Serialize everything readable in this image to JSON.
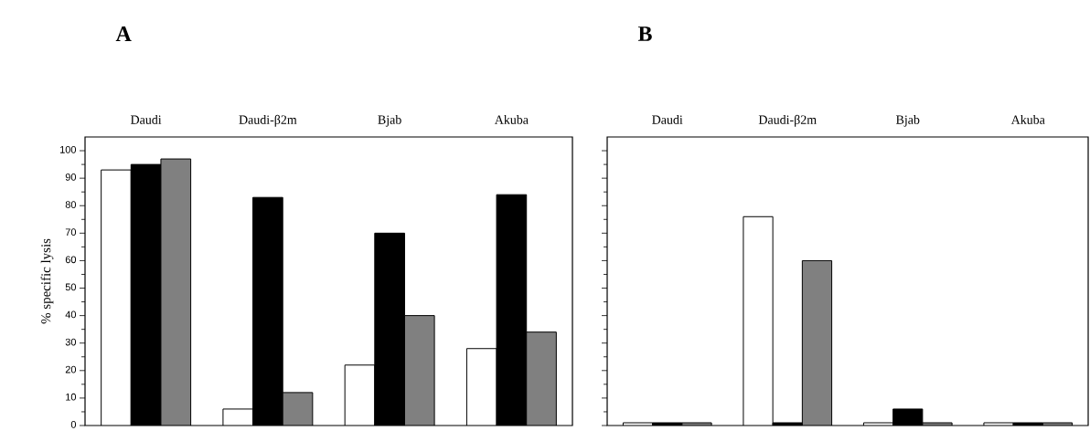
{
  "chart_data": [
    {
      "type": "bar",
      "title": "A",
      "ylabel": "% specific lysis",
      "categories": [
        "Daudi",
        "Daudi-β2m",
        "Bjab",
        "Akuba"
      ],
      "series": [
        {
          "color": "#ffffff",
          "values": [
            93,
            6,
            22,
            28
          ]
        },
        {
          "color": "#000000",
          "values": [
            95,
            83,
            70,
            84
          ]
        },
        {
          "color": "#808080",
          "values": [
            97,
            12,
            40,
            34
          ]
        }
      ],
      "ylim": [
        0,
        105
      ],
      "yticks": [
        0,
        10,
        20,
        30,
        40,
        50,
        60,
        70,
        80,
        90,
        100
      ]
    },
    {
      "type": "bar",
      "title": "B",
      "categories": [
        "Daudi",
        "Daudi-β2m",
        "Bjab",
        "Akuba"
      ],
      "series": [
        {
          "color": "#ffffff",
          "values": [
            1,
            76,
            1,
            1
          ]
        },
        {
          "color": "#000000",
          "values": [
            1,
            1,
            6,
            1
          ]
        },
        {
          "color": "#808080",
          "values": [
            1,
            60,
            1,
            1
          ]
        }
      ],
      "ylim": [
        0,
        105
      ],
      "yticks": [
        0,
        10,
        20,
        30,
        40,
        50,
        60,
        70,
        80,
        90,
        100
      ],
      "tick_labels": "x"
    }
  ]
}
